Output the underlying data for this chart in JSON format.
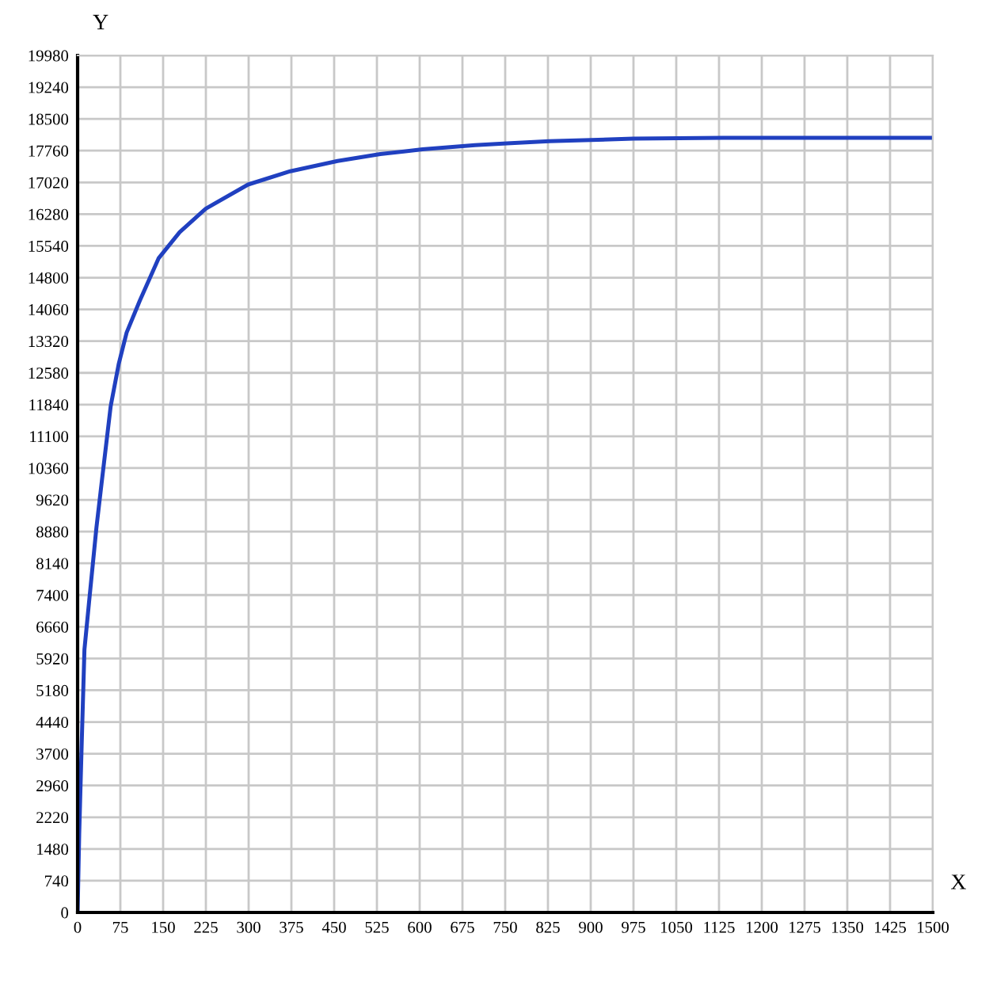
{
  "chart_data": {
    "type": "line",
    "xlabel": "X",
    "ylabel": "Y",
    "x": [
      0,
      2.8,
      7.4,
      12,
      21,
      33,
      42,
      58,
      72,
      86,
      109,
      142,
      179,
      225,
      299,
      373,
      456,
      531,
      605,
      697,
      753,
      827,
      975,
      1132,
      1300,
      1500
    ],
    "series": [
      {
        "color": "#2040c0",
        "values": [
          0,
          1820,
          4040,
          6130,
          7360,
          8970,
          10000,
          11800,
          12780,
          13520,
          14260,
          15250,
          15860,
          16410,
          16970,
          17280,
          17520,
          17680,
          17790,
          17890,
          17930,
          17980,
          18040,
          18060,
          18060,
          18060
        ]
      }
    ],
    "xlim": [
      0,
      1500
    ],
    "xticks": [
      0,
      75,
      150,
      225,
      300,
      375,
      450,
      525,
      600,
      675,
      750,
      825,
      900,
      975,
      1050,
      1125,
      1200,
      1275,
      1350,
      1425,
      1500
    ],
    "ylim": [
      0,
      19980
    ],
    "yticks": [
      0,
      740,
      1480,
      2220,
      2960,
      3700,
      4440,
      5180,
      5920,
      6660,
      7400,
      8140,
      8880,
      9620,
      10360,
      11100,
      11840,
      12580,
      13320,
      14060,
      14800,
      15540,
      16280,
      17020,
      17760,
      18500,
      19240,
      19980
    ],
    "grid": true,
    "marker": "none",
    "line_style": "solid",
    "legend": false
  }
}
